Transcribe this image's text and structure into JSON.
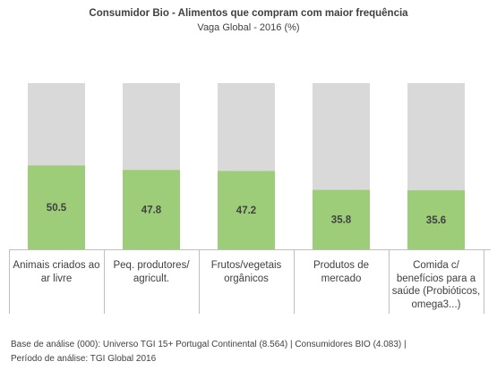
{
  "chart_data": {
    "type": "bar",
    "stacked_to": 100,
    "title": "Consumidor Bio - Alimentos que compram com maior frequência",
    "subtitle": "Vaga Global - 2016 (%)",
    "categories": [
      "Animais criados ao ar livre",
      "Peq. produtores/ agricult.",
      "Frutos/vegetais orgânicos",
      "Produtos de mercado",
      "Comida c/ benefícios para a saúde (Probióticos, omega3...)"
    ],
    "category_lines": [
      [
        "Animais criados ao",
        "ar livre"
      ],
      [
        "Peq. produtores/",
        "agricult."
      ],
      [
        "Frutos/vegetais",
        "orgânicos"
      ],
      [
        "Produtos de",
        "mercado"
      ],
      [
        "Comida c/",
        "benefícios para a",
        "saúde (Probióticos,",
        "omega3...)"
      ]
    ],
    "values": [
      50.5,
      47.8,
      47.2,
      35.8,
      35.6
    ],
    "value_labels": [
      "50.5",
      "47.8",
      "47.2",
      "35.8",
      "35.6"
    ],
    "ylim": [
      0,
      100
    ],
    "grid": false,
    "legend": "none",
    "colors": {
      "value": "#9dcd78",
      "remainder": "#d9d9d9",
      "axis": "#bfbfbf"
    }
  },
  "footnote": {
    "line1": "Base de análise (000): Universo TGI 15+ Portugal Continental (8.564) | Consumidores BIO (4.083) |",
    "line2": "Período de análise: TGI Global 2016"
  }
}
